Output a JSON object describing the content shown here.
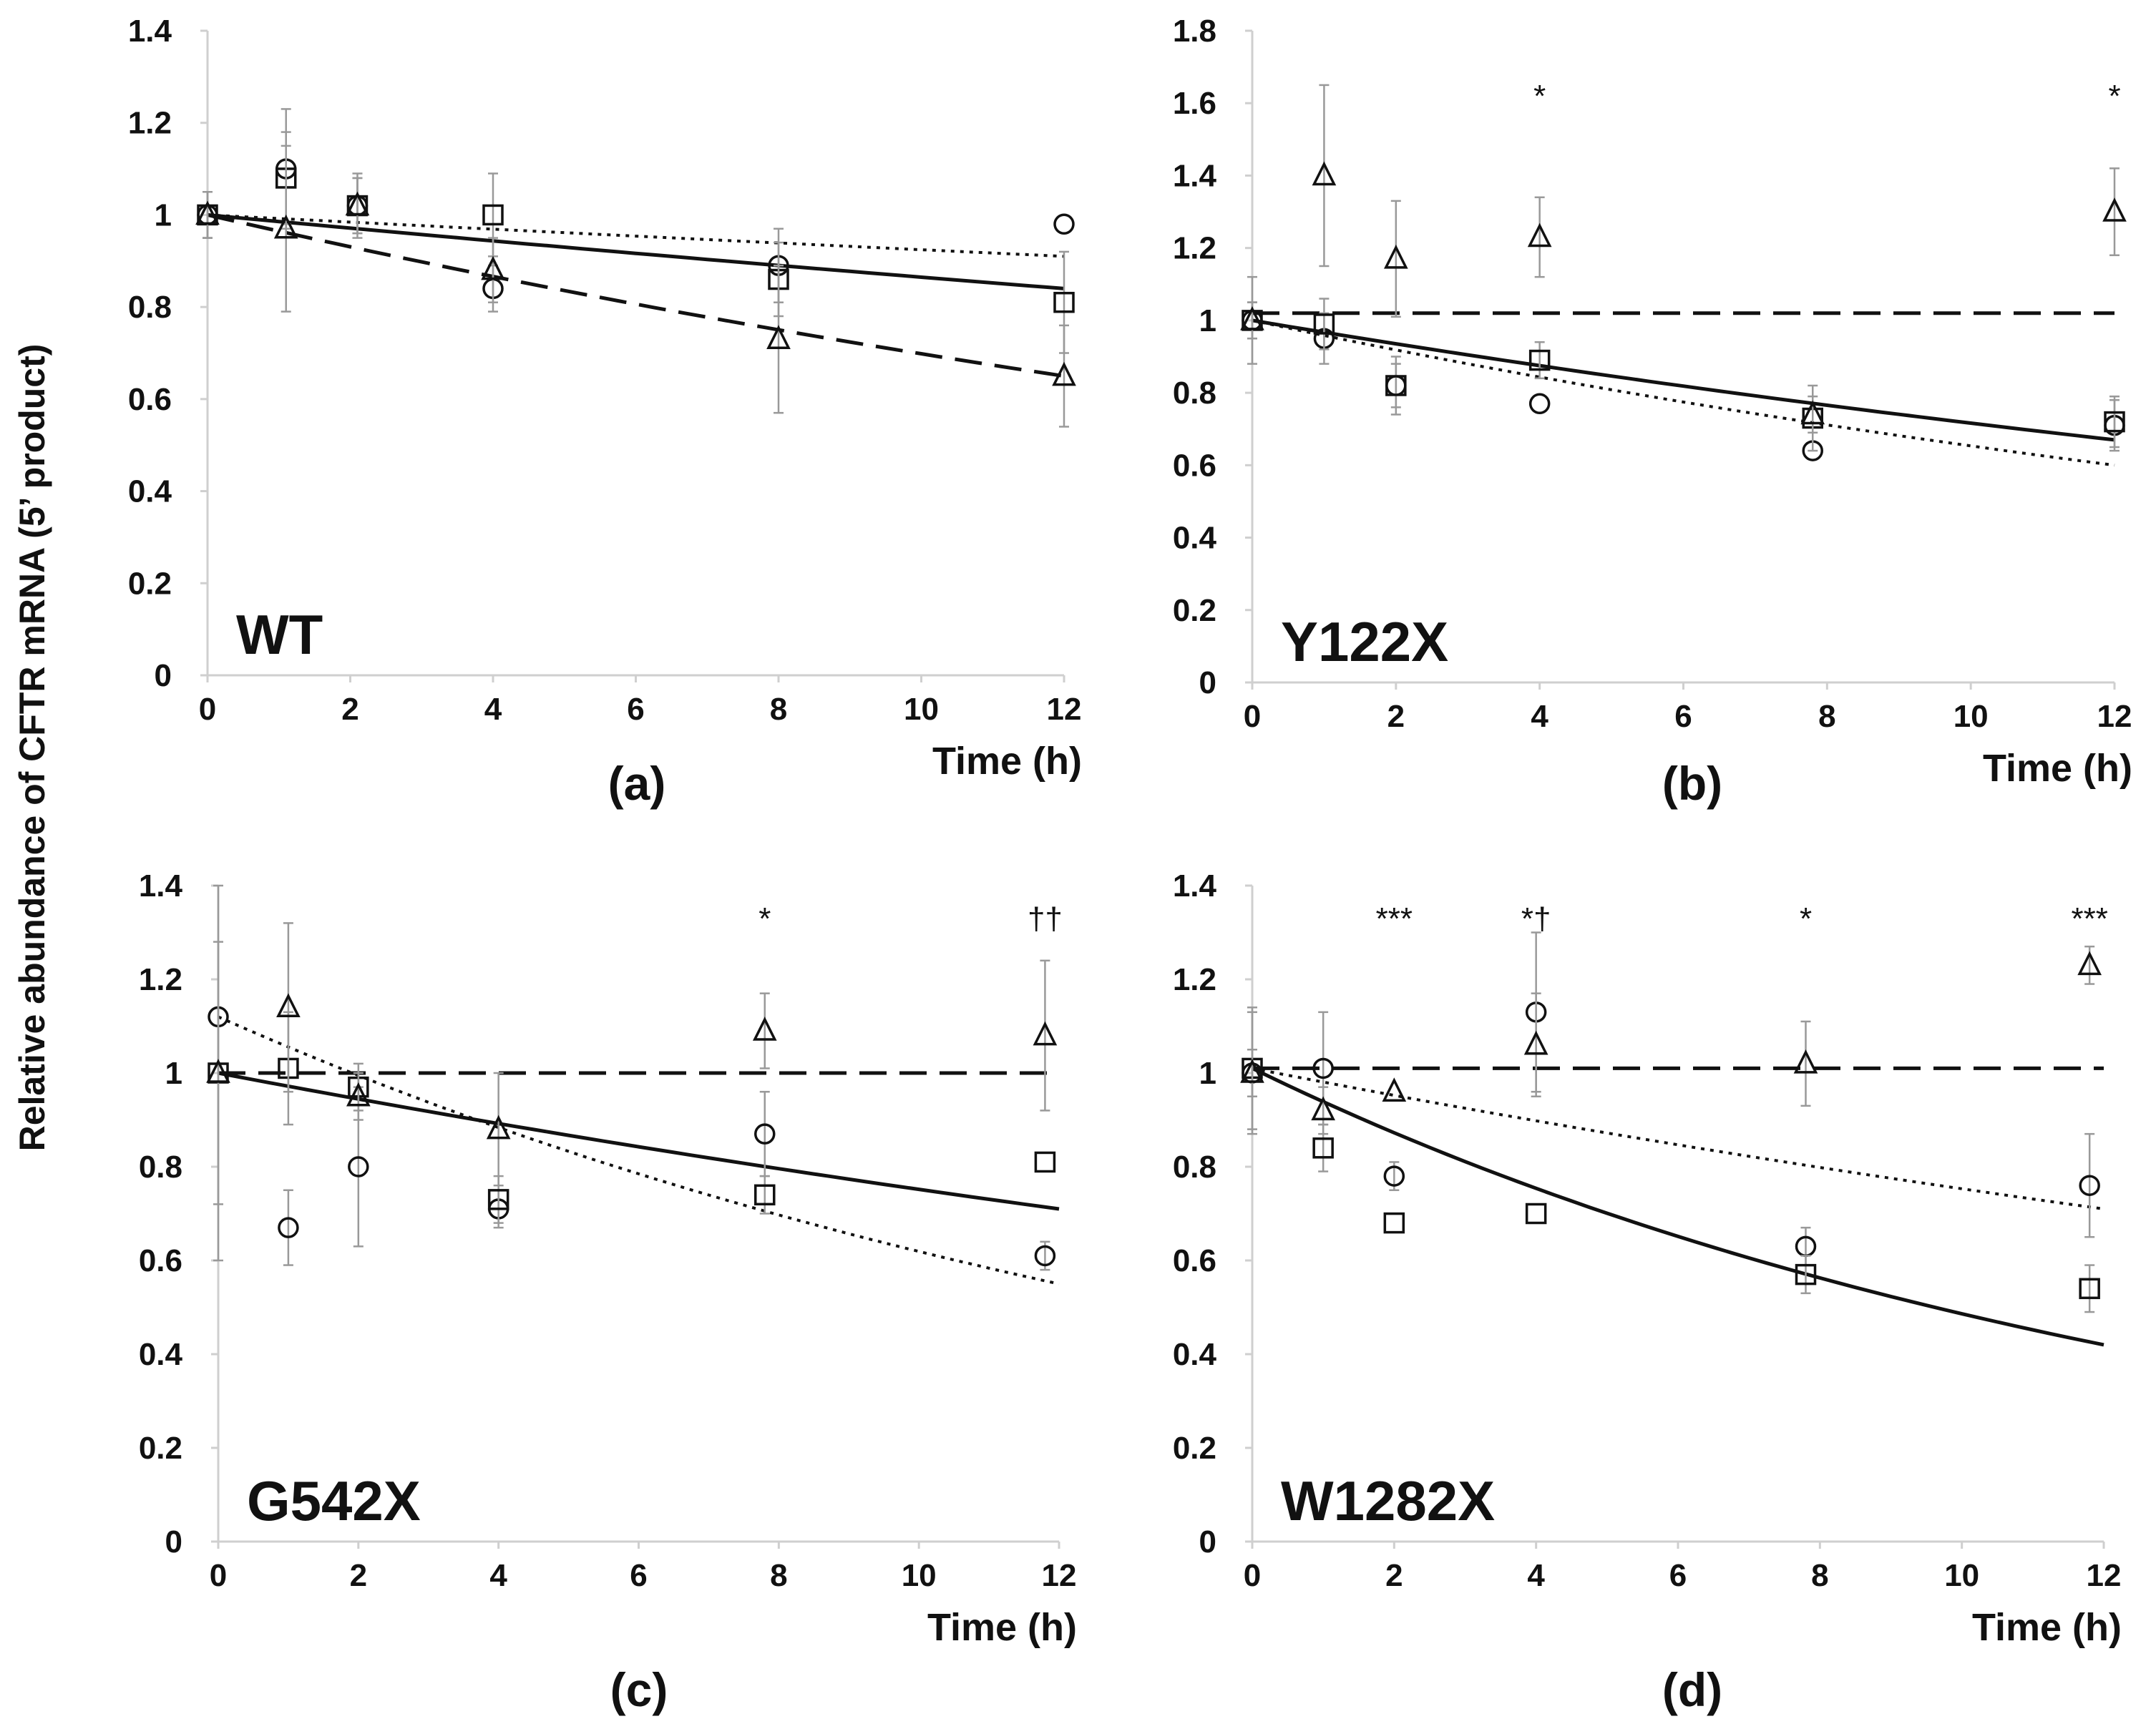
{
  "ylabel": "Relative abundance of CFTR mRNA (5’ product)",
  "chart_data": [
    {
      "type": "scatter",
      "panel": "(a)",
      "title": "WT",
      "xlabel": "Time (h)",
      "xlim": [
        0,
        12
      ],
      "ylim": [
        0,
        1.4
      ],
      "xticks": [
        "0",
        "2",
        "4",
        "6",
        "8",
        "10",
        "12"
      ],
      "yticks": [
        "0",
        "0.2",
        "0.4",
        "0.6",
        "0.8",
        "1",
        "1.2",
        "1.4"
      ],
      "series": [
        {
          "marker": "circle",
          "fit": "dotted",
          "x": [
            0,
            1.1,
            2.1,
            4.0,
            8.0,
            12.0
          ],
          "y": [
            1.0,
            1.1,
            1.02,
            0.84,
            0.89,
            0.98
          ],
          "err": [
            0.05,
            0.13,
            0.06,
            0.05,
            0.08,
            0.0
          ]
        },
        {
          "marker": "square",
          "fit": "solid",
          "x": [
            0,
            1.1,
            2.1,
            4.0,
            8.0,
            12.0
          ],
          "y": [
            1.0,
            1.08,
            1.02,
            1.0,
            0.86,
            0.81
          ],
          "err": [
            0.05,
            0.1,
            0.07,
            0.09,
            0.08,
            0.11
          ]
        },
        {
          "marker": "triangle",
          "fit": "dashed",
          "x": [
            0,
            1.1,
            2.1,
            4.0,
            8.0,
            12.0
          ],
          "y": [
            1.0,
            0.97,
            1.02,
            0.88,
            0.73,
            0.65
          ],
          "err": [
            0.05,
            0.18,
            0.06,
            0.07,
            0.16,
            0.11
          ]
        }
      ],
      "fits": [
        {
          "style": "dotted",
          "y0": 1.0,
          "y12": 0.91
        },
        {
          "style": "solid",
          "y0": 1.0,
          "y12": 0.84
        },
        {
          "style": "dashed",
          "y0": 1.0,
          "y12": 0.65
        }
      ],
      "annotations": []
    },
    {
      "type": "scatter",
      "panel": "(b)",
      "title": "Y122X",
      "xlabel": "Time (h)",
      "xlim": [
        0,
        12
      ],
      "ylim": [
        0,
        1.8
      ],
      "xticks": [
        "0",
        "2",
        "4",
        "6",
        "8",
        "10",
        "12"
      ],
      "yticks": [
        "0",
        "0.2",
        "0.4",
        "0.6",
        "0.8",
        "1",
        "1.2",
        "1.4",
        "1.6",
        "1.8"
      ],
      "series": [
        {
          "marker": "circle",
          "fit": "dotted",
          "x": [
            0,
            1.0,
            2.0,
            4.0,
            7.8,
            12.0
          ],
          "y": [
            1.0,
            0.95,
            0.82,
            0.77,
            0.64,
            0.71
          ],
          "err": [
            0.05,
            0.07,
            0.06,
            0.0,
            0.0,
            0.07
          ]
        },
        {
          "marker": "square",
          "fit": "solid",
          "x": [
            0,
            1.0,
            2.0,
            4.0,
            7.8,
            12.0
          ],
          "y": [
            1.0,
            0.99,
            0.82,
            0.89,
            0.73,
            0.72
          ],
          "err": [
            0.12,
            0.07,
            0.08,
            0.05,
            0.09,
            0.07
          ]
        },
        {
          "marker": "triangle",
          "fit": "dashed",
          "x": [
            0,
            1.0,
            2.0,
            4.0,
            7.8,
            12.0
          ],
          "y": [
            1.0,
            1.4,
            1.17,
            1.23,
            0.74,
            1.3
          ],
          "err": [
            0.05,
            0.25,
            0.16,
            0.11,
            0.05,
            0.12
          ]
        }
      ],
      "fits": [
        {
          "style": "dotted",
          "y0": 1.0,
          "y12": 0.6
        },
        {
          "style": "solid",
          "y0": 1.0,
          "y12": 0.67
        },
        {
          "style": "dashed",
          "y0": 1.02,
          "y12": 1.02
        }
      ],
      "annotations": [
        {
          "x": 4.0,
          "y": 1.62,
          "text": "*"
        },
        {
          "x": 12.0,
          "y": 1.62,
          "text": "*"
        }
      ]
    },
    {
      "type": "scatter",
      "panel": "(c)",
      "title": "G542X",
      "xlabel": "Time (h)",
      "xlim": [
        0,
        12
      ],
      "ylim": [
        0,
        1.4
      ],
      "xticks": [
        "0",
        "2",
        "4",
        "6",
        "8",
        "10",
        "12"
      ],
      "yticks": [
        "0",
        "0.2",
        "0.4",
        "0.6",
        "0.8",
        "1",
        "1.2",
        "1.4"
      ],
      "series": [
        {
          "marker": "circle",
          "fit": "dotted",
          "x": [
            0,
            1.0,
            2.0,
            4.0,
            7.8,
            11.8
          ],
          "y": [
            1.12,
            0.67,
            0.8,
            0.71,
            0.87,
            0.61
          ],
          "err": [
            0.0,
            0.08,
            0.17,
            0.04,
            0.09,
            0.03
          ]
        },
        {
          "marker": "square",
          "fit": "solid",
          "x": [
            0,
            1.0,
            2.0,
            4.0,
            7.8,
            11.8
          ],
          "y": [
            1.0,
            1.01,
            0.97,
            0.73,
            0.74,
            0.81
          ],
          "err": [
            0.28,
            0.12,
            0.05,
            0.05,
            0.04,
            0.0
          ]
        },
        {
          "marker": "triangle",
          "fit": "dashed",
          "x": [
            0,
            1.0,
            2.0,
            4.0,
            7.8,
            11.8
          ],
          "y": [
            1.0,
            1.14,
            0.95,
            0.88,
            1.09,
            1.08
          ],
          "err": [
            0.4,
            0.18,
            0.05,
            0.12,
            0.08,
            0.16
          ]
        }
      ],
      "fits": [
        {
          "style": "dotted",
          "y0": 1.12,
          "y12": 0.55
        },
        {
          "style": "solid",
          "y0": 1.0,
          "y12": 0.71
        },
        {
          "style": "dashed",
          "y0": 1.0,
          "y12": 1.0
        }
      ],
      "annotations": [
        {
          "x": 7.8,
          "y": 1.33,
          "text": "*"
        },
        {
          "x": 11.8,
          "y": 1.33,
          "text": "††"
        }
      ]
    },
    {
      "type": "scatter",
      "panel": "(d)",
      "title": "W1282X",
      "xlabel": "Time (h)",
      "xlim": [
        0,
        12
      ],
      "ylim": [
        0,
        1.4
      ],
      "xticks": [
        "0",
        "2",
        "4",
        "6",
        "8",
        "10",
        "12"
      ],
      "yticks": [
        "0",
        "0.2",
        "0.4",
        "0.6",
        "0.8",
        "1",
        "1.2",
        "1.4"
      ],
      "series": [
        {
          "marker": "circle",
          "fit": "dotted",
          "x": [
            0,
            1.0,
            2.0,
            4.0,
            7.8,
            11.8
          ],
          "y": [
            1.0,
            1.01,
            0.78,
            1.13,
            0.63,
            0.76
          ],
          "err": [
            0.13,
            0.12,
            0.03,
            0.17,
            0.04,
            0.11
          ]
        },
        {
          "marker": "square",
          "fit": "solid",
          "x": [
            0,
            1.0,
            2.0,
            4.0,
            7.8,
            11.8
          ],
          "y": [
            1.01,
            0.84,
            0.68,
            0.7,
            0.57,
            0.54
          ],
          "err": [
            0.13,
            0.05,
            0.0,
            0.0,
            0.04,
            0.05
          ]
        },
        {
          "marker": "triangle",
          "fit": "dashed",
          "x": [
            0,
            1.0,
            2.0,
            4.0,
            7.8,
            11.8
          ],
          "y": [
            1.0,
            0.92,
            0.96,
            1.06,
            1.02,
            1.23
          ],
          "err": [
            0.05,
            0.05,
            0.0,
            0.11,
            0.09,
            0.04
          ]
        }
      ],
      "fits": [
        {
          "style": "dotted",
          "y0": 1.01,
          "y12": 0.71
        },
        {
          "style": "solid",
          "y0": 1.01,
          "y12": 0.42
        },
        {
          "style": "dashed",
          "y0": 1.01,
          "y12": 1.01
        }
      ],
      "annotations": [
        {
          "x": 2.0,
          "y": 1.33,
          "text": "***"
        },
        {
          "x": 4.0,
          "y": 1.33,
          "text": "*†"
        },
        {
          "x": 7.8,
          "y": 1.33,
          "text": "*"
        },
        {
          "x": 11.8,
          "y": 1.33,
          "text": "***"
        }
      ]
    }
  ]
}
